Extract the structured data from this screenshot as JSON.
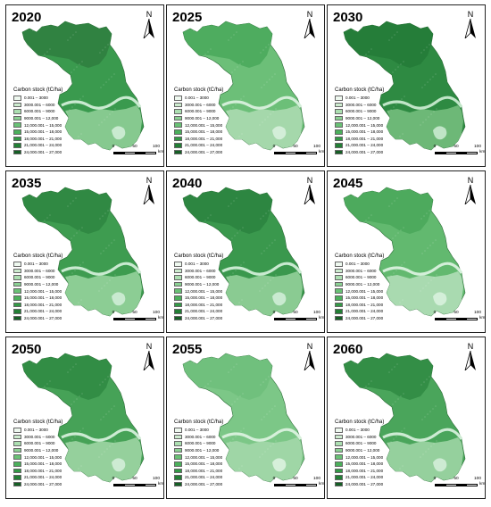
{
  "panels": [
    {
      "year": "2020",
      "fill": "#3a9a4e",
      "north_fill": "#2f7e3f",
      "south_fill": "#86c98f",
      "river_fill": "#c9ead0"
    },
    {
      "year": "2025",
      "fill": "#6cbf78",
      "north_fill": "#49a85a",
      "south_fill": "#a5d8ab",
      "river_fill": "#d3eed8"
    },
    {
      "year": "2030",
      "fill": "#2e8a42",
      "north_fill": "#237a37",
      "south_fill": "#6db877",
      "river_fill": "#c0e5c7"
    },
    {
      "year": "2035",
      "fill": "#3e9c50",
      "north_fill": "#2e8641",
      "south_fill": "#8ccd94",
      "river_fill": "#c9ead0"
    },
    {
      "year": "2040",
      "fill": "#3a984d",
      "north_fill": "#2c8340",
      "south_fill": "#8acb92",
      "river_fill": "#c9ead0"
    },
    {
      "year": "2045",
      "fill": "#62b96f",
      "north_fill": "#4aa75b",
      "south_fill": "#a9dab0",
      "river_fill": "#d4efd9"
    },
    {
      "year": "2050",
      "fill": "#46a257",
      "north_fill": "#2f8942",
      "south_fill": "#95d09c",
      "river_fill": "#cdebd3"
    },
    {
      "year": "2055",
      "fill": "#7cc787",
      "north_fill": "#6fbe7b",
      "south_fill": "#9fd6a6",
      "river_fill": "#d6f0da"
    },
    {
      "year": "2060",
      "fill": "#4aa55b",
      "north_fill": "#2f8a43",
      "south_fill": "#95d09d",
      "river_fill": "#cdebd3"
    }
  ],
  "legend": {
    "title": "Carbon stock (tC/ha)",
    "classes": [
      {
        "label": "0.001 – 3000",
        "color": "#eef8ef"
      },
      {
        "label": "3000.001 – 6000",
        "color": "#cdeccf"
      },
      {
        "label": "6000.001 – 9000",
        "color": "#acdfb1"
      },
      {
        "label": "9000.001 – 12,000",
        "color": "#8bd193"
      },
      {
        "label": "12,000.001 – 15,000",
        "color": "#69c175"
      },
      {
        "label": "15,000.001 – 18,000",
        "color": "#4bb05b"
      },
      {
        "label": "18,000.001 – 21,000",
        "color": "#339a46"
      },
      {
        "label": "21,000.001 – 24,000",
        "color": "#237f35"
      },
      {
        "label": "24,000.001 – 27,000",
        "color": "#155f25"
      }
    ]
  },
  "north_arrow": {
    "label": "N",
    "icon": "north-arrow-icon"
  },
  "scale_bar": {
    "ticks": [
      "0",
      "50",
      "100"
    ],
    "unit": "km"
  }
}
